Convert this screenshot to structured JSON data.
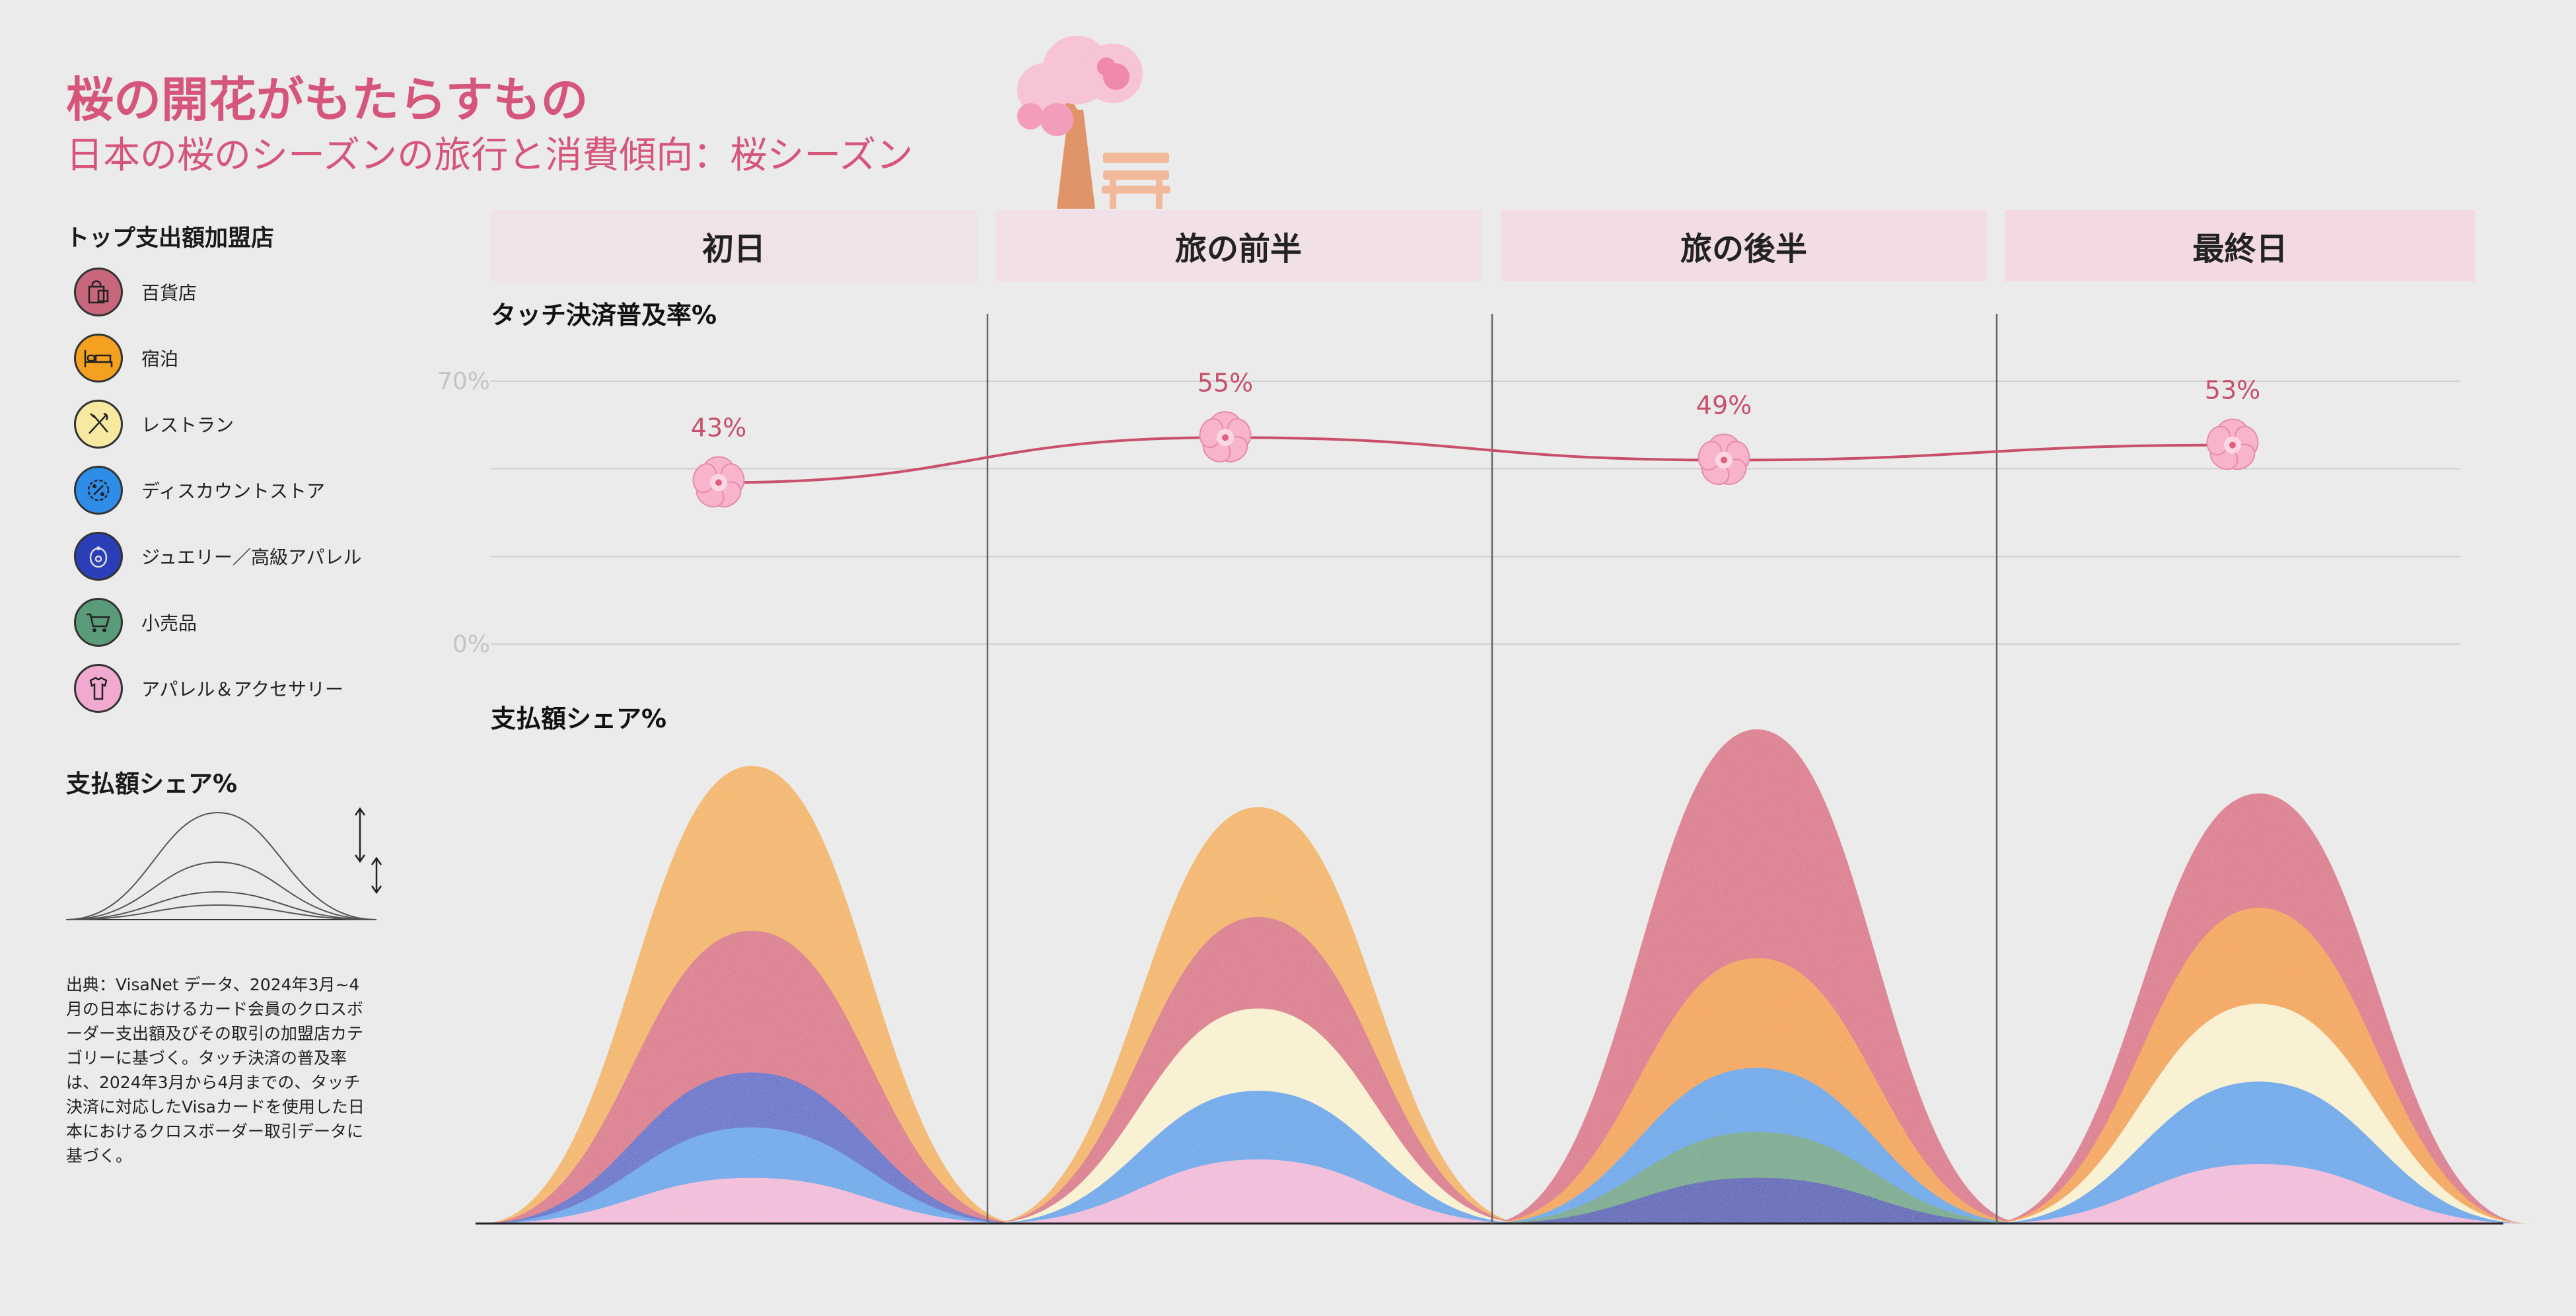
{
  "header": {
    "title": "桜の開花がもたらすもの",
    "subtitle": "日本の桜のシーズンの旅行と消費傾向：桜シーズン"
  },
  "legend": {
    "title": "トップ支出額加盟店",
    "items": [
      {
        "label": "百貨店",
        "icon": "shopping-bag-icon",
        "color": "#c8677b"
      },
      {
        "label": "宿泊",
        "icon": "bed-icon",
        "color": "#f4a020"
      },
      {
        "label": "レストラン",
        "icon": "utensils-icon",
        "color": "#f7e9a0"
      },
      {
        "label": "ディスカウントストア",
        "icon": "discount-tag-icon",
        "color": "#2e8de8"
      },
      {
        "label": "ジュエリー／高級アパレル",
        "icon": "jewelry-icon",
        "color": "#2a3eb8"
      },
      {
        "label": "小売品",
        "icon": "shopping-cart-icon",
        "color": "#5a9c7a"
      },
      {
        "label": "アパレル＆アクセサリー",
        "icon": "apparel-icon",
        "color": "#f2a9d0"
      }
    ]
  },
  "shape_legend": {
    "title": "支払額シェア%"
  },
  "source": "出典：VisaNet データ、2024年3月~4月の日本におけるカード会員のクロスボーダー支出額及びその取引の加盟店カテゴリーに基づく。タッチ決済の普及率は、2024年3月から4月までの、タッチ決済に対応したVisaカードを使用した日本におけるクロスボーダー取引データに基づく。",
  "chart_data": {
    "type": "area",
    "categories": [
      "初日",
      "旅の前半",
      "旅の後半",
      "最終日"
    ],
    "top_chart": {
      "title": "タッチ決済普及率%",
      "ylim": [
        0,
        70
      ],
      "ytick_labels": [
        "70%",
        "0%"
      ],
      "values": [
        43,
        55,
        49,
        53
      ],
      "value_labels": [
        "43%",
        "55%",
        "49%",
        "53%"
      ],
      "line_color": "#c8506a"
    },
    "bottom_chart": {
      "title": "支払額シェア%",
      "layers_back_to_front": [
        {
          "category": "宿泊",
          "color": "#f2ad45",
          "values": [
            100,
            91,
            58,
            0
          ]
        },
        {
          "category": "百貨店",
          "color": "#d8637a",
          "values": [
            64,
            67,
            108,
            94
          ]
        },
        {
          "category": "宿泊",
          "color": "#f39a1c",
          "values": [
            0,
            0,
            58,
            69
          ]
        },
        {
          "category": "レストラン",
          "color": "#f8efcb",
          "values": [
            0,
            47,
            0,
            48
          ]
        },
        {
          "category": "ジュエリー／高級アパレル",
          "color": "#3f55c4",
          "values": [
            33,
            0,
            0,
            0
          ]
        },
        {
          "category": "ディスカウントストア",
          "color": "#4a9ce8",
          "values": [
            21,
            29,
            34,
            31
          ]
        },
        {
          "category": "小売品",
          "color": "#5f9f7b",
          "values": [
            0,
            0,
            20,
            0
          ]
        },
        {
          "category": "ジュエリー／高級アパレル",
          "color": "#2d3fae",
          "values": [
            0,
            0,
            10,
            0
          ]
        },
        {
          "category": "アパレル＆アクセサリー",
          "color": "#f0b4d6",
          "values": [
            10,
            14,
            0,
            13
          ]
        }
      ]
    }
  }
}
